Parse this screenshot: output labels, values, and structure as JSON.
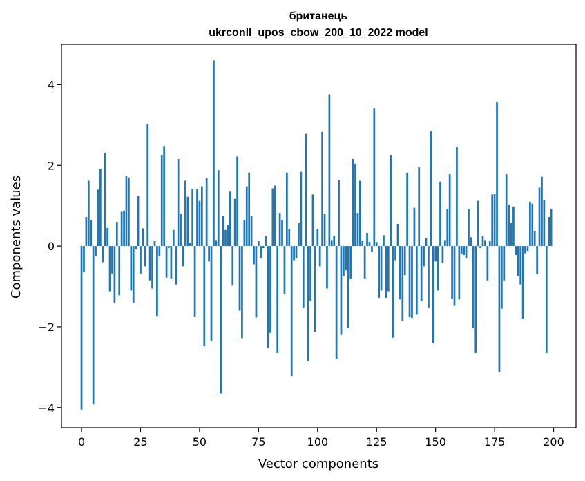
{
  "chart_data": {
    "type": "bar",
    "title_line1": "британець",
    "title_line2": "ukrconll_upos_cbow_200_10_2022 model",
    "xlabel": "Vector components",
    "ylabel": "Components values",
    "xlim": [
      -8.5,
      209.5
    ],
    "ylim": [
      -4.5,
      5.0
    ],
    "xticks": [
      0,
      25,
      50,
      75,
      100,
      125,
      150,
      175,
      200
    ],
    "xtick_labels": [
      "0",
      "25",
      "50",
      "75",
      "100",
      "125",
      "150",
      "175",
      "200"
    ],
    "yticks": [
      -4,
      -2,
      0,
      2,
      4
    ],
    "ytick_labels": [
      "−4",
      "−2",
      "0",
      "2",
      "4"
    ],
    "grid": false,
    "bar_color": "#1f77b4",
    "x": [
      0,
      1,
      2,
      3,
      4,
      5,
      6,
      7,
      8,
      9,
      10,
      11,
      12,
      13,
      14,
      15,
      16,
      17,
      18,
      19,
      20,
      21,
      22,
      23,
      24,
      25,
      26,
      27,
      28,
      29,
      30,
      31,
      32,
      33,
      34,
      35,
      36,
      37,
      38,
      39,
      40,
      41,
      42,
      43,
      44,
      45,
      46,
      47,
      48,
      49,
      50,
      51,
      52,
      53,
      54,
      55,
      56,
      57,
      58,
      59,
      60,
      61,
      62,
      63,
      64,
      65,
      66,
      67,
      68,
      69,
      70,
      71,
      72,
      73,
      74,
      75,
      76,
      77,
      78,
      79,
      80,
      81,
      82,
      83,
      84,
      85,
      86,
      87,
      88,
      89,
      90,
      91,
      92,
      93,
      94,
      95,
      96,
      97,
      98,
      99,
      100,
      101,
      102,
      103,
      104,
      105,
      106,
      107,
      108,
      109,
      110,
      111,
      112,
      113,
      114,
      115,
      116,
      117,
      118,
      119,
      120,
      121,
      122,
      123,
      124,
      125,
      126,
      127,
      128,
      129,
      130,
      131,
      132,
      133,
      134,
      135,
      136,
      137,
      138,
      139,
      140,
      141,
      142,
      143,
      144,
      145,
      146,
      147,
      148,
      149,
      150,
      151,
      152,
      153,
      154,
      155,
      156,
      157,
      158,
      159,
      160,
      161,
      162,
      163,
      164,
      165,
      166,
      167,
      168,
      169,
      170,
      171,
      172,
      173,
      174,
      175,
      176,
      177,
      178,
      179,
      180,
      181,
      182,
      183,
      184,
      185,
      186,
      187,
      188,
      189,
      190,
      191,
      192,
      193,
      194,
      195,
      196,
      197,
      198,
      199
    ],
    "values": [
      -4.05,
      -0.65,
      0.72,
      1.62,
      0.65,
      -3.92,
      -0.25,
      1.4,
      1.92,
      -0.4,
      2.31,
      0.45,
      -1.12,
      -0.68,
      -1.4,
      0.6,
      -1.22,
      0.85,
      0.88,
      1.73,
      1.7,
      -1.1,
      -1.4,
      -0.08,
      1.24,
      -0.68,
      0.44,
      -0.5,
      3.02,
      -0.85,
      -1.05,
      0.12,
      -1.73,
      -0.25,
      2.26,
      2.48,
      -0.78,
      -0.05,
      -0.8,
      0.4,
      -0.95,
      2.16,
      0.8,
      -0.5,
      1.62,
      1.22,
      0.08,
      1.42,
      -1.75,
      1.42,
      1.12,
      1.48,
      -2.48,
      1.68,
      -0.38,
      -2.35,
      4.6,
      0.15,
      1.88,
      -3.65,
      0.75,
      0.4,
      0.52,
      1.35,
      -0.98,
      1.17,
      2.22,
      -1.6,
      -2.28,
      0.65,
      1.48,
      1.82,
      0.75,
      -0.45,
      -1.77,
      0.12,
      -0.3,
      -0.05,
      0.25,
      -2.52,
      -2.15,
      1.43,
      1.5,
      -2.65,
      0.82,
      0.65,
      -1.18,
      1.82,
      0.42,
      -3.22,
      -0.35,
      -0.3,
      0.57,
      1.84,
      -1.52,
      2.78,
      -2.85,
      -1.35,
      1.28,
      -2.12,
      0.42,
      -0.5,
      2.83,
      0.8,
      -1.05,
      3.76,
      0.15,
      0.26,
      -2.8,
      1.63,
      -2.2,
      -0.75,
      -0.6,
      -2.03,
      -0.8,
      2.16,
      2.04,
      0.82,
      1.62,
      0.13,
      -0.8,
      0.33,
      0.1,
      -0.15,
      3.42,
      0.1,
      -1.28,
      -1.1,
      0.27,
      -1.28,
      -1.12,
      2.25,
      -2.27,
      -0.35,
      0.55,
      -1.32,
      -1.85,
      -0.72,
      1.82,
      -1.75,
      -1.78,
      0.95,
      -1.7,
      1.95,
      -1.35,
      -0.5,
      0.2,
      -1.52,
      2.85,
      -2.4,
      -0.38,
      -1.1,
      1.6,
      -0.42,
      0.15,
      0.92,
      1.78,
      -1.3,
      -1.48,
      2.45,
      -1.32,
      -0.2,
      -0.22,
      -0.3,
      0.92,
      0.22,
      -2.02,
      -2.65,
      1.12,
      -0.05,
      0.25,
      0.15,
      -0.85,
      0.12,
      1.28,
      1.3,
      3.57,
      -3.12,
      -1.55,
      -0.85,
      1.78,
      1.03,
      0.58,
      0.98,
      -0.22,
      -0.75,
      -0.95,
      -1.8,
      -0.18,
      -0.12,
      1.1,
      1.05,
      0.38,
      -0.7,
      1.45,
      1.72,
      1.15,
      -2.65,
      0.72,
      0.92
    ]
  }
}
